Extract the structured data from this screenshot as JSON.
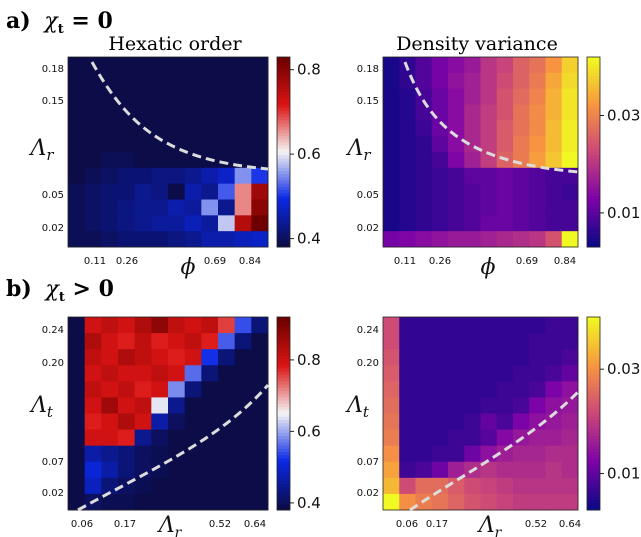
{
  "rows": [
    {
      "label_letter": "a)",
      "label_condition": "χ",
      "label_sub": "t",
      "label_rel": " = 0"
    },
    {
      "label_letter": "b)",
      "label_condition": "χ",
      "label_sub": "t",
      "label_rel": " > 0"
    }
  ],
  "chart_data": [
    {
      "type": "heatmap",
      "title": "Hexatic order",
      "xlabel": "ϕ",
      "ylabel": "Λ",
      "ylabel_sub": "r",
      "xticks": [
        "0.11",
        "0.26",
        "0.69",
        "0.84"
      ],
      "yticks": [
        "0.18",
        "0.15",
        "0.05",
        "0.02"
      ],
      "colormap": "seismic",
      "colorbar_ticks": [
        "0.8",
        "0.6",
        "0.4"
      ],
      "clim": [
        0.38,
        0.83
      ],
      "boundary": "dashed white line",
      "grid": [
        [
          0.38,
          0.38,
          0.38,
          0.38,
          0.38,
          0.38,
          0.38,
          0.38,
          0.38,
          0.38,
          0.38,
          0.38
        ],
        [
          0.38,
          0.38,
          0.38,
          0.38,
          0.38,
          0.38,
          0.38,
          0.38,
          0.38,
          0.38,
          0.38,
          0.38
        ],
        [
          0.38,
          0.38,
          0.38,
          0.38,
          0.38,
          0.38,
          0.38,
          0.38,
          0.38,
          0.38,
          0.38,
          0.38
        ],
        [
          0.38,
          0.38,
          0.38,
          0.38,
          0.38,
          0.38,
          0.38,
          0.38,
          0.38,
          0.38,
          0.38,
          0.38
        ],
        [
          0.38,
          0.38,
          0.38,
          0.38,
          0.38,
          0.38,
          0.38,
          0.38,
          0.38,
          0.38,
          0.38,
          0.38
        ],
        [
          0.38,
          0.38,
          0.38,
          0.38,
          0.38,
          0.38,
          0.38,
          0.38,
          0.38,
          0.38,
          0.38,
          0.38
        ],
        [
          0.38,
          0.38,
          0.39,
          0.39,
          0.38,
          0.38,
          0.38,
          0.38,
          0.38,
          0.38,
          0.38,
          0.38
        ],
        [
          0.38,
          0.39,
          0.4,
          0.41,
          0.41,
          0.42,
          0.42,
          0.43,
          0.45,
          0.47,
          0.55,
          0.5
        ],
        [
          0.39,
          0.4,
          0.41,
          0.41,
          0.43,
          0.42,
          0.36,
          0.45,
          0.43,
          0.52,
          0.66,
          0.78
        ],
        [
          0.39,
          0.4,
          0.41,
          0.42,
          0.43,
          0.43,
          0.45,
          0.44,
          0.55,
          0.43,
          0.66,
          0.8
        ],
        [
          0.39,
          0.4,
          0.41,
          0.42,
          0.43,
          0.44,
          0.44,
          0.46,
          0.44,
          0.58,
          0.76,
          0.88
        ],
        [
          0.39,
          0.39,
          0.4,
          0.41,
          0.41,
          0.41,
          0.42,
          0.43,
          0.45,
          0.45,
          0.46,
          0.47
        ]
      ]
    },
    {
      "type": "heatmap",
      "title": "Density variance",
      "xlabel": "ϕ",
      "ylabel": "Λ",
      "ylabel_sub": "r",
      "xticks": [
        "0.11",
        "0.26",
        "0.69",
        "0.84"
      ],
      "yticks": [
        "0.18",
        "0.15",
        "0.05",
        "0.02"
      ],
      "colormap": "plasma",
      "colorbar_ticks": [
        "0.03",
        "0.01"
      ],
      "clim": [
        0.003,
        0.042
      ],
      "boundary": "dashed white line",
      "grid": [
        [
          0.004,
          0.006,
          0.009,
          0.012,
          0.014,
          0.016,
          0.02,
          0.022,
          0.026,
          0.028,
          0.032,
          0.038
        ],
        [
          0.004,
          0.006,
          0.009,
          0.012,
          0.015,
          0.017,
          0.02,
          0.023,
          0.026,
          0.029,
          0.034,
          0.039
        ],
        [
          0.004,
          0.005,
          0.008,
          0.011,
          0.014,
          0.017,
          0.02,
          0.024,
          0.027,
          0.03,
          0.035,
          0.04
        ],
        [
          0.004,
          0.005,
          0.008,
          0.011,
          0.014,
          0.018,
          0.021,
          0.024,
          0.028,
          0.031,
          0.035,
          0.04
        ],
        [
          0.004,
          0.005,
          0.007,
          0.011,
          0.014,
          0.018,
          0.021,
          0.025,
          0.028,
          0.031,
          0.036,
          0.041
        ],
        [
          0.004,
          0.005,
          0.006,
          0.01,
          0.014,
          0.018,
          0.021,
          0.025,
          0.029,
          0.032,
          0.036,
          0.041
        ],
        [
          0.004,
          0.005,
          0.006,
          0.008,
          0.013,
          0.017,
          0.021,
          0.026,
          0.029,
          0.033,
          0.037,
          0.042
        ],
        [
          0.004,
          0.005,
          0.006,
          0.007,
          0.008,
          0.01,
          0.01,
          0.011,
          0.01,
          0.009,
          0.008,
          0.008
        ],
        [
          0.004,
          0.005,
          0.006,
          0.007,
          0.008,
          0.009,
          0.01,
          0.011,
          0.01,
          0.009,
          0.008,
          0.007
        ],
        [
          0.004,
          0.005,
          0.006,
          0.007,
          0.008,
          0.009,
          0.01,
          0.011,
          0.01,
          0.009,
          0.008,
          0.008
        ],
        [
          0.004,
          0.005,
          0.006,
          0.007,
          0.008,
          0.009,
          0.011,
          0.011,
          0.01,
          0.009,
          0.008,
          0.008
        ],
        [
          0.012,
          0.013,
          0.014,
          0.015,
          0.016,
          0.016,
          0.017,
          0.018,
          0.019,
          0.02,
          0.024,
          0.042
        ]
      ]
    },
    {
      "type": "heatmap",
      "title": "",
      "xlabel": "Λ",
      "xlabel_sub": "r",
      "ylabel": "Λ",
      "ylabel_sub": "t",
      "xticks": [
        "0.06",
        "0.17",
        "0.52",
        "0.64"
      ],
      "yticks": [
        "0.24",
        "0.20",
        "0.07",
        "0.02"
      ],
      "colormap": "seismic",
      "colorbar_ticks": [
        "0.8",
        "0.6",
        "0.4"
      ],
      "clim": [
        0.38,
        0.92
      ],
      "boundary": "dashed white line",
      "grid": [
        [
          0.38,
          0.8,
          0.82,
          0.8,
          0.84,
          0.88,
          0.82,
          0.8,
          0.82,
          0.76,
          0.54,
          0.42
        ],
        [
          0.38,
          0.84,
          0.8,
          0.78,
          0.82,
          0.78,
          0.8,
          0.82,
          0.78,
          0.55,
          0.42,
          0.38
        ],
        [
          0.38,
          0.82,
          0.8,
          0.84,
          0.82,
          0.8,
          0.78,
          0.8,
          0.52,
          0.42,
          0.38,
          0.38
        ],
        [
          0.38,
          0.8,
          0.82,
          0.8,
          0.8,
          0.82,
          0.8,
          0.56,
          0.42,
          0.38,
          0.38,
          0.38
        ],
        [
          0.38,
          0.82,
          0.8,
          0.82,
          0.78,
          0.8,
          0.58,
          0.42,
          0.38,
          0.38,
          0.38,
          0.38
        ],
        [
          0.38,
          0.8,
          0.86,
          0.8,
          0.82,
          0.64,
          0.44,
          0.38,
          0.38,
          0.38,
          0.38,
          0.38
        ],
        [
          0.38,
          0.78,
          0.8,
          0.84,
          0.8,
          0.46,
          0.4,
          0.38,
          0.38,
          0.38,
          0.38,
          0.38
        ],
        [
          0.38,
          0.8,
          0.8,
          0.78,
          0.44,
          0.4,
          0.38,
          0.38,
          0.38,
          0.38,
          0.38,
          0.38
        ],
        [
          0.38,
          0.46,
          0.44,
          0.42,
          0.4,
          0.39,
          0.38,
          0.38,
          0.38,
          0.38,
          0.38,
          0.38
        ],
        [
          0.38,
          0.5,
          0.46,
          0.42,
          0.4,
          0.39,
          0.38,
          0.38,
          0.38,
          0.38,
          0.38,
          0.38
        ],
        [
          0.38,
          0.48,
          0.42,
          0.4,
          0.39,
          0.38,
          0.38,
          0.38,
          0.38,
          0.38,
          0.38,
          0.38
        ],
        [
          0.38,
          0.4,
          0.39,
          0.39,
          0.38,
          0.38,
          0.38,
          0.38,
          0.38,
          0.38,
          0.38,
          0.38
        ]
      ]
    },
    {
      "type": "heatmap",
      "title": "",
      "xlabel": "Λ",
      "xlabel_sub": "r",
      "ylabel": "Λ",
      "ylabel_sub": "t",
      "xticks": [
        "0.06",
        "0.17",
        "0.52",
        "0.64"
      ],
      "yticks": [
        "0.24",
        "0.20",
        "0.07",
        "0.02"
      ],
      "colormap": "plasma",
      "colorbar_ticks": [
        "0.03",
        "0.01"
      ],
      "clim": [
        0.003,
        0.04
      ],
      "boundary": "dashed white line",
      "grid": [
        [
          0.022,
          0.006,
          0.006,
          0.006,
          0.006,
          0.006,
          0.006,
          0.006,
          0.006,
          0.006,
          0.007,
          0.007
        ],
        [
          0.022,
          0.006,
          0.006,
          0.006,
          0.006,
          0.006,
          0.006,
          0.006,
          0.006,
          0.007,
          0.007,
          0.007
        ],
        [
          0.023,
          0.006,
          0.006,
          0.006,
          0.006,
          0.006,
          0.006,
          0.006,
          0.006,
          0.007,
          0.007,
          0.008
        ],
        [
          0.024,
          0.006,
          0.006,
          0.006,
          0.006,
          0.006,
          0.006,
          0.006,
          0.007,
          0.007,
          0.008,
          0.01
        ],
        [
          0.025,
          0.006,
          0.006,
          0.006,
          0.006,
          0.006,
          0.006,
          0.007,
          0.007,
          0.008,
          0.012,
          0.014
        ],
        [
          0.026,
          0.006,
          0.006,
          0.006,
          0.006,
          0.006,
          0.007,
          0.007,
          0.008,
          0.012,
          0.014,
          0.015
        ],
        [
          0.027,
          0.006,
          0.006,
          0.006,
          0.006,
          0.007,
          0.01,
          0.008,
          0.012,
          0.014,
          0.015,
          0.016
        ],
        [
          0.028,
          0.006,
          0.006,
          0.006,
          0.007,
          0.007,
          0.009,
          0.013,
          0.015,
          0.016,
          0.016,
          0.017
        ],
        [
          0.03,
          0.006,
          0.006,
          0.007,
          0.007,
          0.011,
          0.014,
          0.016,
          0.017,
          0.017,
          0.018,
          0.018
        ],
        [
          0.032,
          0.007,
          0.008,
          0.011,
          0.016,
          0.018,
          0.019,
          0.018,
          0.018,
          0.018,
          0.019,
          0.018
        ],
        [
          0.034,
          0.022,
          0.026,
          0.026,
          0.024,
          0.022,
          0.021,
          0.02,
          0.019,
          0.019,
          0.019,
          0.019
        ],
        [
          0.04,
          0.03,
          0.028,
          0.027,
          0.025,
          0.023,
          0.022,
          0.021,
          0.02,
          0.02,
          0.02,
          0.02
        ]
      ]
    }
  ]
}
